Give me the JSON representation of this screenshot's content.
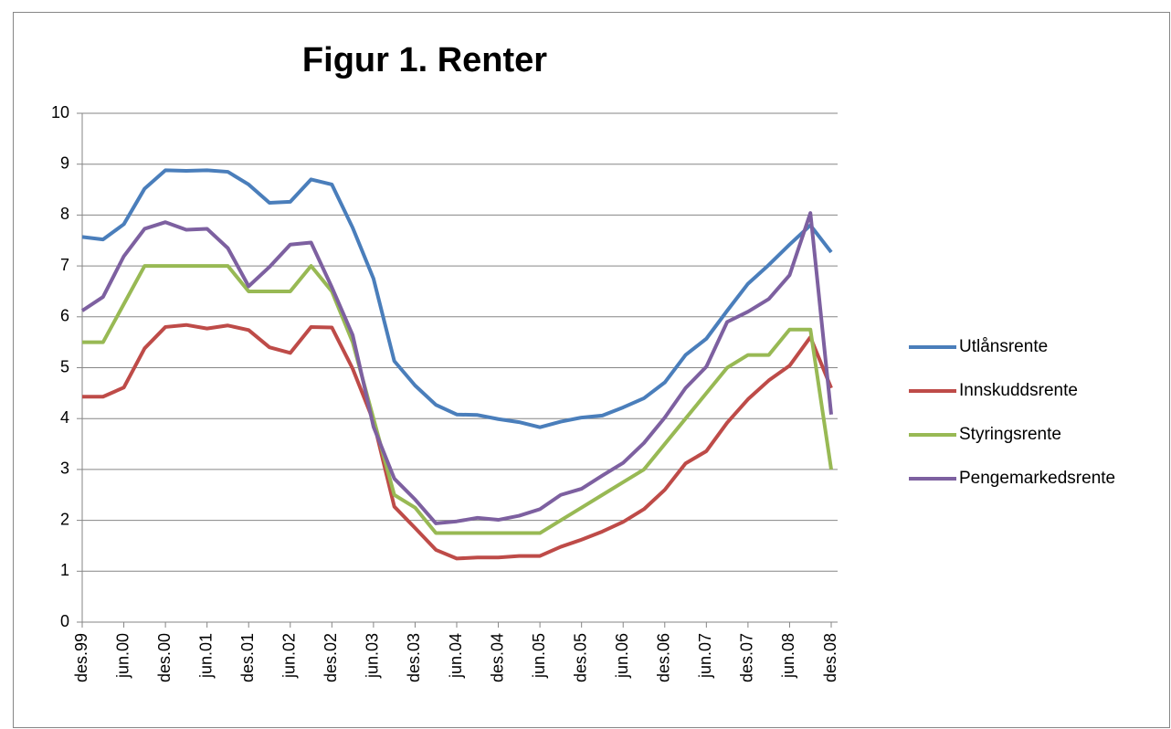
{
  "chart_data": {
    "type": "line",
    "title": "Figur 1. Renter",
    "categories": [
      "des.99",
      null,
      "jun.00",
      null,
      "des.00",
      null,
      "jun.01",
      null,
      "des.01",
      null,
      "jun.02",
      null,
      "des.02",
      null,
      "jun.03",
      null,
      "des.03",
      null,
      "jun.04",
      null,
      "des.04",
      null,
      "jun.05",
      null,
      "des.05",
      null,
      "jun.06",
      null,
      "des.06",
      null,
      "jun.07",
      null,
      "des.07",
      null,
      "jun.08",
      null,
      "des.08"
    ],
    "series": [
      {
        "name": "Utlånsrente",
        "color": "#4a7ebb",
        "values": [
          7.57,
          7.52,
          7.82,
          8.52,
          8.88,
          8.87,
          8.88,
          8.85,
          8.6,
          8.24,
          8.26,
          8.7,
          8.6,
          7.75,
          6.75,
          5.13,
          4.65,
          4.27,
          4.08,
          4.07,
          3.99,
          3.93,
          3.83,
          3.94,
          4.02,
          4.06,
          4.22,
          4.4,
          4.71,
          5.25,
          5.57,
          6.12,
          6.65,
          7.02,
          7.42,
          7.8,
          7.27
        ]
      },
      {
        "name": "Innskuddsrente",
        "color": "#be4b48",
        "values": [
          4.43,
          4.43,
          4.61,
          5.38,
          5.8,
          5.84,
          5.77,
          5.83,
          5.74,
          5.4,
          5.29,
          5.8,
          5.79,
          4.98,
          3.95,
          2.27,
          1.85,
          1.42,
          1.25,
          1.27,
          1.27,
          1.3,
          1.3,
          1.48,
          1.62,
          1.78,
          1.97,
          2.22,
          2.6,
          3.12,
          3.36,
          3.92,
          4.38,
          4.75,
          5.04,
          5.6,
          4.6
        ]
      },
      {
        "name": "Styringsrente",
        "color": "#98b954",
        "values": [
          5.5,
          5.5,
          6.25,
          7.0,
          7.0,
          7.0,
          7.0,
          7.0,
          6.5,
          6.5,
          6.5,
          7.0,
          6.5,
          5.5,
          4.0,
          2.5,
          2.25,
          1.75,
          1.75,
          1.75,
          1.75,
          1.75,
          1.75,
          2.0,
          2.25,
          2.5,
          2.75,
          3.0,
          3.5,
          4.0,
          4.5,
          5.0,
          5.25,
          5.25,
          5.75,
          5.75,
          3.0
        ]
      },
      {
        "name": "Pengemarkedsrente",
        "color": "#7d60a0",
        "values": [
          6.12,
          6.39,
          7.19,
          7.73,
          7.86,
          7.71,
          7.73,
          7.35,
          6.6,
          6.98,
          7.42,
          7.46,
          6.58,
          5.64,
          3.84,
          2.82,
          2.41,
          1.94,
          1.98,
          2.05,
          2.01,
          2.09,
          2.22,
          2.5,
          2.62,
          2.88,
          3.13,
          3.52,
          4.02,
          4.6,
          5.02,
          5.9,
          6.1,
          6.35,
          6.82,
          8.04,
          4.08
        ]
      }
    ],
    "ylim": [
      0,
      10
    ],
    "yticks": [
      0,
      1,
      2,
      3,
      4,
      5,
      6,
      7,
      8,
      9,
      10
    ],
    "grid": true,
    "legend": "right"
  }
}
